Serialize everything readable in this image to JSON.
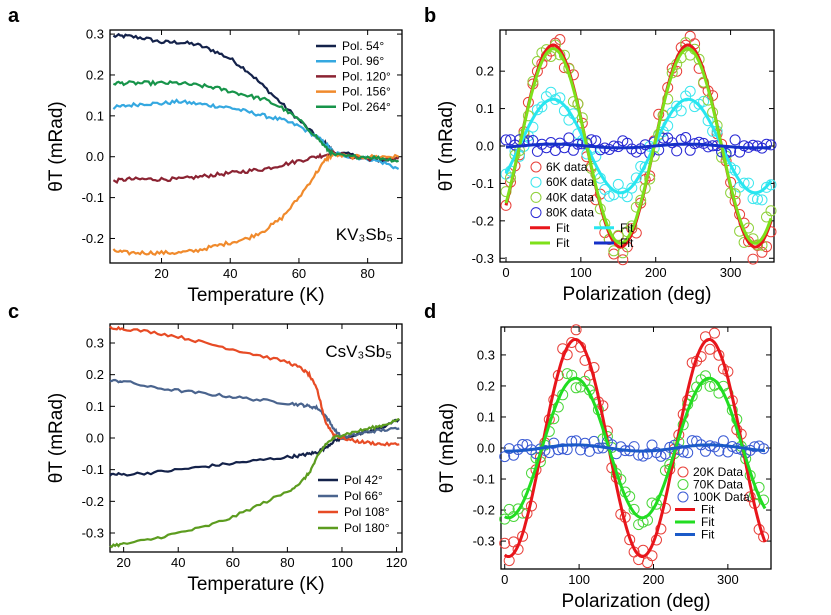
{
  "chart_data": [
    {
      "id": "a",
      "panel": "a",
      "type": "line",
      "xlabel": "Temperature (K)",
      "ylabel": "θT (mRad)",
      "xlim": [
        5,
        90
      ],
      "ylim": [
        -0.26,
        0.31
      ],
      "xticks": [
        20,
        40,
        60,
        80
      ],
      "yticks": [
        -0.2,
        -0.1,
        0.0,
        0.1,
        0.2,
        0.3
      ],
      "yticklabels": [
        "-0.2",
        "-0.1",
        "0.0",
        "0.1",
        "0.2",
        "0.3"
      ],
      "annotation": "KV₃Sb₅",
      "x": [
        6,
        10,
        15,
        20,
        25,
        30,
        35,
        40,
        45,
        50,
        55,
        60,
        65,
        68,
        70,
        75,
        80,
        85,
        89
      ],
      "series": [
        {
          "name": "Pol. 54°",
          "color": "#14224a",
          "values": [
            0.295,
            0.295,
            0.29,
            0.28,
            0.28,
            0.275,
            0.26,
            0.24,
            0.21,
            0.17,
            0.13,
            0.09,
            0.05,
            0.03,
            0.01,
            0.005,
            -0.005,
            -0.01,
            0.0
          ]
        },
        {
          "name": "Pol. 96°",
          "color": "#35a8e0",
          "values": [
            0.12,
            0.125,
            0.13,
            0.13,
            0.135,
            0.13,
            0.125,
            0.12,
            0.11,
            0.1,
            0.09,
            0.075,
            0.05,
            0.03,
            0.01,
            0.0,
            -0.005,
            -0.015,
            -0.03
          ]
        },
        {
          "name": "Pol. 120°",
          "color": "#8b2332",
          "values": [
            -0.06,
            -0.055,
            -0.055,
            -0.055,
            -0.055,
            -0.05,
            -0.045,
            -0.04,
            -0.035,
            -0.03,
            -0.02,
            -0.01,
            0.0,
            0.005,
            0.01,
            0.0,
            -0.005,
            -0.005,
            -0.005
          ]
        },
        {
          "name": "Pol. 156°",
          "color": "#f08a2c",
          "values": [
            -0.23,
            -0.235,
            -0.235,
            -0.235,
            -0.235,
            -0.23,
            -0.22,
            -0.21,
            -0.2,
            -0.18,
            -0.15,
            -0.1,
            -0.04,
            -0.005,
            0.005,
            0.0,
            0.0,
            0.0,
            0.0
          ]
        },
        {
          "name": "Pol. 264°",
          "color": "#17944a",
          "values": [
            0.18,
            0.18,
            0.18,
            0.18,
            0.18,
            0.175,
            0.17,
            0.16,
            0.15,
            0.14,
            0.12,
            0.09,
            0.05,
            0.02,
            0.005,
            0.0,
            0.0,
            -0.005,
            -0.01
          ]
        }
      ],
      "legend_position": "top-right"
    },
    {
      "id": "b",
      "panel": "b",
      "type": "scatter",
      "xlabel": "Polarization (deg)",
      "ylabel": "θT (mRad)",
      "xlim": [
        -8,
        358
      ],
      "ylim": [
        -0.31,
        0.31
      ],
      "xticks": [
        0,
        100,
        200,
        300
      ],
      "yticks": [
        -0.3,
        -0.2,
        -0.1,
        0.0,
        0.1,
        0.2
      ],
      "yticklabels": [
        "-0.3",
        "-0.2",
        "-0.1",
        "0.0",
        "0.1",
        "0.2"
      ],
      "x_start": 0,
      "x_step": 6,
      "x_end": 354,
      "series": [
        {
          "name": "6K data",
          "fit_name": "Fit",
          "color": "#e8403a",
          "fit_color": "#e8151b",
          "amplitude": 0.27,
          "phase_deg": 63,
          "period_deg": 180,
          "offset": 0.0
        },
        {
          "name": "60K data",
          "fit_name": "Fit",
          "color": "#3ce6ee",
          "fit_color": "#28e6f0",
          "amplitude": 0.125,
          "phase_deg": 63,
          "period_deg": 180,
          "offset": 0.0
        },
        {
          "name": "40K data",
          "fit_name": "Fit",
          "color": "#8fd13a",
          "fit_color": "#7ee01a",
          "amplitude": 0.26,
          "phase_deg": 63,
          "period_deg": 180,
          "offset": 0.0
        },
        {
          "name": "80K data",
          "fit_name": "Fit",
          "color": "#2828d4",
          "fit_color": "#1530c8",
          "amplitude": 0.005,
          "phase_deg": 63,
          "period_deg": 180,
          "offset": 0.0
        }
      ],
      "legend_position": "bottom-left"
    },
    {
      "id": "c",
      "panel": "c",
      "type": "line",
      "xlabel": "Temperature (K)",
      "ylabel": "θT (mRad)",
      "xlim": [
        15,
        122
      ],
      "ylim": [
        -0.36,
        0.36
      ],
      "xticks": [
        20,
        40,
        60,
        80,
        100,
        120
      ],
      "yticks": [
        -0.3,
        -0.2,
        -0.1,
        0.0,
        0.1,
        0.2,
        0.3
      ],
      "yticklabels": [
        "-0.3",
        "-0.2",
        "-0.1",
        "0.0",
        "0.1",
        "0.2",
        "0.3"
      ],
      "annotation": "CsV₃Sb₅",
      "x": [
        15,
        20,
        30,
        40,
        50,
        60,
        70,
        80,
        85,
        88,
        91,
        94,
        97,
        100,
        105,
        110,
        115,
        121
      ],
      "series": [
        {
          "name": "Pol 42°",
          "color": "#14224a",
          "values": [
            -0.115,
            -0.115,
            -0.11,
            -0.1,
            -0.09,
            -0.08,
            -0.07,
            -0.06,
            -0.055,
            -0.05,
            -0.045,
            -0.03,
            -0.01,
            0.0,
            0.01,
            0.02,
            0.035,
            0.06
          ]
        },
        {
          "name": "Pol 66°",
          "color": "#4a648e",
          "values": [
            0.18,
            0.18,
            0.16,
            0.15,
            0.14,
            0.13,
            0.12,
            0.11,
            0.105,
            0.1,
            0.095,
            0.07,
            0.03,
            0.0,
            0.01,
            0.02,
            0.025,
            0.03
          ]
        },
        {
          "name": "Pol 108°",
          "color": "#e74b25",
          "values": [
            0.35,
            0.345,
            0.335,
            0.32,
            0.3,
            0.28,
            0.26,
            0.24,
            0.22,
            0.2,
            0.15,
            0.05,
            0.01,
            0.0,
            -0.01,
            -0.015,
            -0.02,
            -0.02
          ]
        },
        {
          "name": "Pol 180°",
          "color": "#5c9c1f",
          "values": [
            -0.34,
            -0.335,
            -0.32,
            -0.3,
            -0.28,
            -0.25,
            -0.21,
            -0.17,
            -0.14,
            -0.11,
            -0.06,
            -0.02,
            0.0,
            0.01,
            0.02,
            0.03,
            0.04,
            0.06
          ]
        }
      ],
      "legend_position": "bottom-right"
    },
    {
      "id": "d",
      "panel": "d",
      "type": "scatter",
      "xlabel": "Polarization (deg)",
      "ylabel": "θT (mRad)",
      "xlim": [
        -5,
        358
      ],
      "ylim": [
        -0.39,
        0.39
      ],
      "xticks": [
        0,
        100,
        200,
        300
      ],
      "yticks": [
        -0.3,
        -0.2,
        -0.1,
        0.0,
        0.1,
        0.2,
        0.3
      ],
      "yticklabels": [
        "-0.3",
        "-0.2",
        "-0.1",
        "0.0",
        "0.1",
        "0.2",
        "0.3"
      ],
      "x_start": 0,
      "x_step": 6,
      "x_end": 350,
      "series": [
        {
          "name": "20K Data",
          "fit_name": "Fit",
          "color": "#e8403a",
          "fit_color": "#e8151b",
          "amplitude": 0.35,
          "phase_deg": 95,
          "period_deg": 180,
          "offset": 0.0
        },
        {
          "name": "70K Data",
          "fit_name": "Fit",
          "color": "#4ad63a",
          "fit_color": "#22dd22",
          "amplitude": 0.225,
          "phase_deg": 95,
          "period_deg": 180,
          "offset": 0.0
        },
        {
          "name": "100K Data",
          "fit_name": "Fit",
          "color": "#3a5ad4",
          "fit_color": "#1b5ac8",
          "amplitude": 0.01,
          "phase_deg": 95,
          "period_deg": 180,
          "offset": 0.0
        }
      ],
      "legend_position": "bottom-right"
    }
  ]
}
